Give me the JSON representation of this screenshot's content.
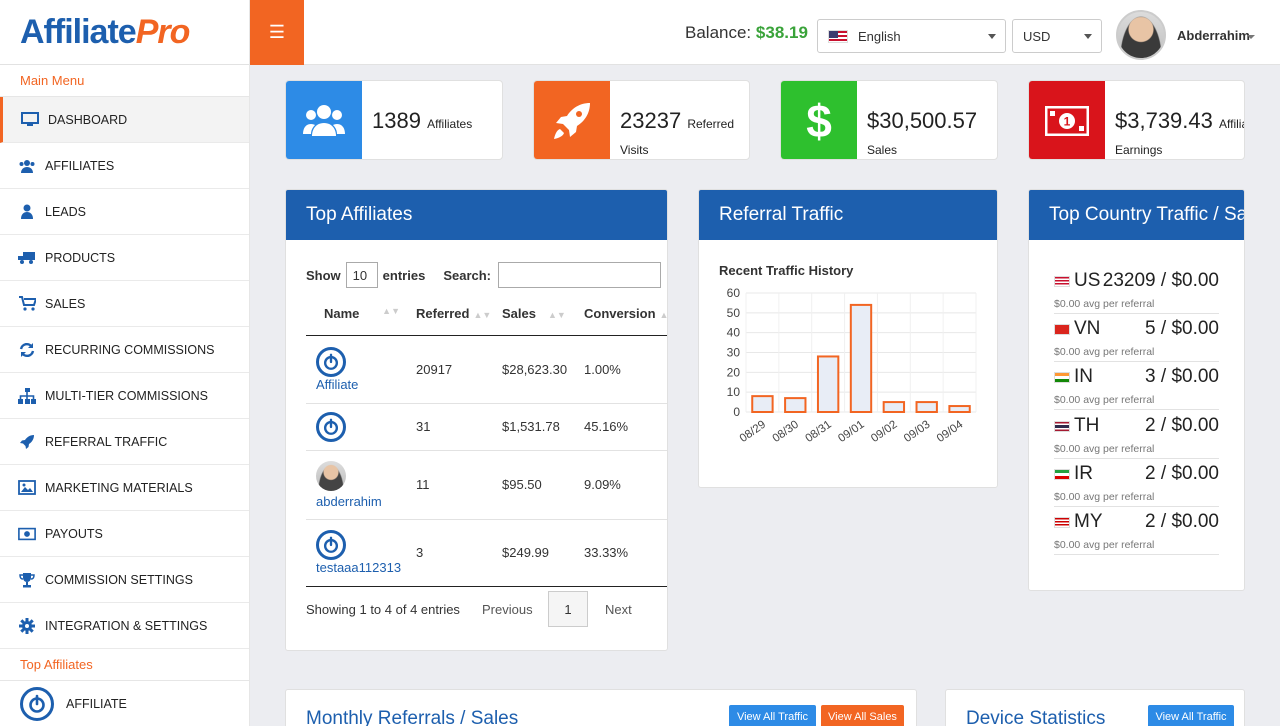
{
  "header": {
    "logo_a": "Affiliate",
    "logo_b": "Pro",
    "balance_label": "Balance:",
    "balance_value": "$38.19",
    "language": "English",
    "currency": "USD",
    "user_name": "Abderrahim"
  },
  "sidebar": {
    "main_menu": "Main Menu",
    "items": [
      {
        "label": "DASHBOARD",
        "icon": "monitor-icon"
      },
      {
        "label": "AFFILIATES",
        "icon": "users-icon"
      },
      {
        "label": "LEADS",
        "icon": "user-icon"
      },
      {
        "label": "PRODUCTS",
        "icon": "truck-icon"
      },
      {
        "label": "SALES",
        "icon": "cart-icon"
      },
      {
        "label": "RECURRING COMMISSIONS",
        "icon": "refresh-icon"
      },
      {
        "label": "MULTI-TIER COMMISSIONS",
        "icon": "sitemap-icon"
      },
      {
        "label": "REFERRAL TRAFFIC",
        "icon": "rocket-icon"
      },
      {
        "label": "MARKETING MATERIALS",
        "icon": "image-icon"
      },
      {
        "label": "PAYOUTS",
        "icon": "money-icon"
      },
      {
        "label": "COMMISSION SETTINGS",
        "icon": "trophy-icon"
      },
      {
        "label": "INTEGRATION & SETTINGS",
        "icon": "gear-icon"
      }
    ],
    "top_affiliates_head": "Top Affiliates",
    "top_affiliate": "AFFILIATE"
  },
  "stats": {
    "affiliates_num": "1389",
    "affiliates_label": "Affiliates",
    "visits_num": "23237",
    "visits_label_a": "Referred",
    "visits_label_b": "Visits",
    "sales_num": "$30,500.57",
    "sales_label": "Sales",
    "earn_num": "$3,739.43",
    "earn_label_a": "Affiliate",
    "earn_label_b": "Earnings"
  },
  "top_affiliates": {
    "title": "Top Affiliates",
    "show": "Show",
    "entries_value": "10",
    "entries": "entries",
    "search": "Search:",
    "columns": [
      "Name",
      "Referred",
      "Sales",
      "Conversion"
    ],
    "rows": [
      {
        "name": "Affiliate",
        "referred": "20917",
        "sales": "$28,623.30",
        "conversion": "1.00%"
      },
      {
        "name": "",
        "referred": "31",
        "sales": "$1,531.78",
        "conversion": "45.16%"
      },
      {
        "name": "abderrahim",
        "referred": "11",
        "sales": "$95.50",
        "conversion": "9.09%"
      },
      {
        "name": "testaaa112313",
        "referred": "3",
        "sales": "$249.99",
        "conversion": "33.33%"
      }
    ],
    "showing": "Showing 1 to 4 of 4 entries",
    "previous": "Previous",
    "page": "1",
    "next": "Next"
  },
  "referral_traffic": {
    "title": "Referral Traffic",
    "chart_title": "Recent Traffic History"
  },
  "chart_data": {
    "type": "bar",
    "title": "Recent Traffic History",
    "categories": [
      "08/29",
      "08/30",
      "08/31",
      "09/01",
      "09/02",
      "09/03",
      "09/04"
    ],
    "values": [
      8,
      7,
      28,
      54,
      5,
      5,
      3
    ],
    "ylim": [
      0,
      60
    ],
    "yticks": [
      0,
      10,
      20,
      30,
      40,
      50,
      60
    ],
    "grid": true,
    "colors": {
      "bar_fill": "#e8edf6",
      "bar_stroke": "#f26522"
    }
  },
  "country_traffic": {
    "title": "Top Country Traffic / Sales",
    "rows": [
      {
        "code": "US",
        "value": "23209 / $0.00",
        "avg": "$0.00 avg per referral"
      },
      {
        "code": "VN",
        "value": "5 / $0.00",
        "avg": "$0.00 avg per referral"
      },
      {
        "code": "IN",
        "value": "3 / $0.00",
        "avg": "$0.00 avg per referral"
      },
      {
        "code": "TH",
        "value": "2 / $0.00",
        "avg": "$0.00 avg per referral"
      },
      {
        "code": "IR",
        "value": "2 / $0.00",
        "avg": "$0.00 avg per referral"
      },
      {
        "code": "MY",
        "value": "2 / $0.00",
        "avg": "$0.00 avg per referral"
      }
    ]
  },
  "monthly": {
    "title": "Monthly Referrals / Sales",
    "view_traffic": "View All Traffic",
    "view_sales": "View All Sales"
  },
  "device": {
    "title": "Device Statistics",
    "view_traffic": "View All Traffic"
  },
  "colors": {
    "brand_blue": "#1d5fae",
    "brand_orange": "#f26522",
    "green": "#2ec02e",
    "red": "#d9141b",
    "azure": "#2d8be6"
  }
}
